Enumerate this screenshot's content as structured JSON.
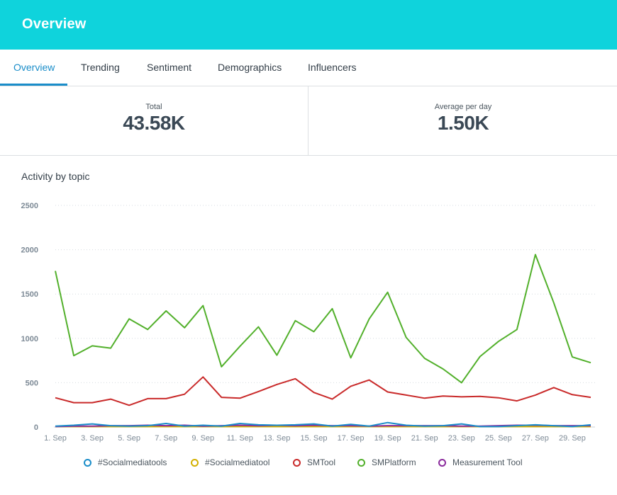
{
  "header": {
    "title": "Overview"
  },
  "tabs": [
    {
      "label": "Overview",
      "active": true
    },
    {
      "label": "Trending",
      "active": false
    },
    {
      "label": "Sentiment",
      "active": false
    },
    {
      "label": "Demographics",
      "active": false
    },
    {
      "label": "Influencers",
      "active": false
    }
  ],
  "stats": {
    "total": {
      "label": "Total",
      "value": "43.58K"
    },
    "average": {
      "label": "Average per day",
      "value": "1.50K"
    }
  },
  "chart_title": "Activity by topic",
  "chart_data": {
    "type": "line",
    "title": "Activity by topic",
    "xlabel": "",
    "ylabel": "",
    "ylim": [
      0,
      2500
    ],
    "yticks": [
      0,
      500,
      1000,
      1500,
      2000,
      2500
    ],
    "grid": true,
    "legend_position": "bottom",
    "x": [
      "1. Sep",
      "2. Sep",
      "3. Sep",
      "4. Sep",
      "5. Sep",
      "6. Sep",
      "7. Sep",
      "8. Sep",
      "9. Sep",
      "10. Sep",
      "11. Sep",
      "12. Sep",
      "13. Sep",
      "14. Sep",
      "15. Sep",
      "16. Sep",
      "17. Sep",
      "18. Sep",
      "19. Sep",
      "20. Sep",
      "21. Sep",
      "22. Sep",
      "23. Sep",
      "24. Sep",
      "25. Sep",
      "26. Sep",
      "27. Sep",
      "28. Sep",
      "29. Sep",
      "30. Sep"
    ],
    "xtick_labels": [
      "1. Sep",
      "3. Sep",
      "5. Sep",
      "7. Sep",
      "9. Sep",
      "11. Sep",
      "13. Sep",
      "15. Sep",
      "17. Sep",
      "19. Sep",
      "21. Sep",
      "23. Sep",
      "25. Sep",
      "27. Sep",
      "29. Sep"
    ],
    "series": [
      {
        "name": "#Socialmediatools",
        "color": "#1a8dc9",
        "values": [
          10,
          20,
          35,
          15,
          10,
          15,
          40,
          10,
          20,
          10,
          40,
          25,
          20,
          25,
          35,
          10,
          30,
          10,
          50,
          20,
          10,
          15,
          35,
          5,
          5,
          15,
          25,
          15,
          5,
          25
        ]
      },
      {
        "name": "#Socialmediatool",
        "color": "#d3b000",
        "values": [
          5,
          5,
          5,
          5,
          5,
          5,
          5,
          5,
          5,
          5,
          5,
          5,
          5,
          5,
          5,
          5,
          5,
          5,
          5,
          5,
          5,
          5,
          5,
          5,
          5,
          5,
          5,
          5,
          5,
          5
        ]
      },
      {
        "name": "SMTool",
        "color": "#c92a2a",
        "values": [
          330,
          275,
          275,
          315,
          245,
          320,
          320,
          370,
          565,
          335,
          325,
          400,
          480,
          545,
          390,
          315,
          460,
          530,
          395,
          360,
          325,
          350,
          340,
          345,
          330,
          295,
          360,
          445,
          365,
          335
        ]
      },
      {
        "name": "SMPlatform",
        "color": "#52b02b",
        "values": [
          1760,
          805,
          915,
          890,
          1220,
          1100,
          1310,
          1120,
          1370,
          680,
          910,
          1130,
          810,
          1200,
          1075,
          1335,
          780,
          1220,
          1520,
          1010,
          775,
          655,
          500,
          795,
          965,
          1100,
          1945,
          1400,
          790,
          725
        ]
      },
      {
        "name": "Measurement Tool",
        "color": "#8a2a9c",
        "values": [
          5,
          10,
          10,
          15,
          15,
          20,
          15,
          20,
          10,
          15,
          20,
          15,
          20,
          15,
          20,
          15,
          15,
          10,
          15,
          15,
          15,
          15,
          10,
          10,
          15,
          20,
          20,
          15,
          15,
          15
        ]
      }
    ]
  }
}
